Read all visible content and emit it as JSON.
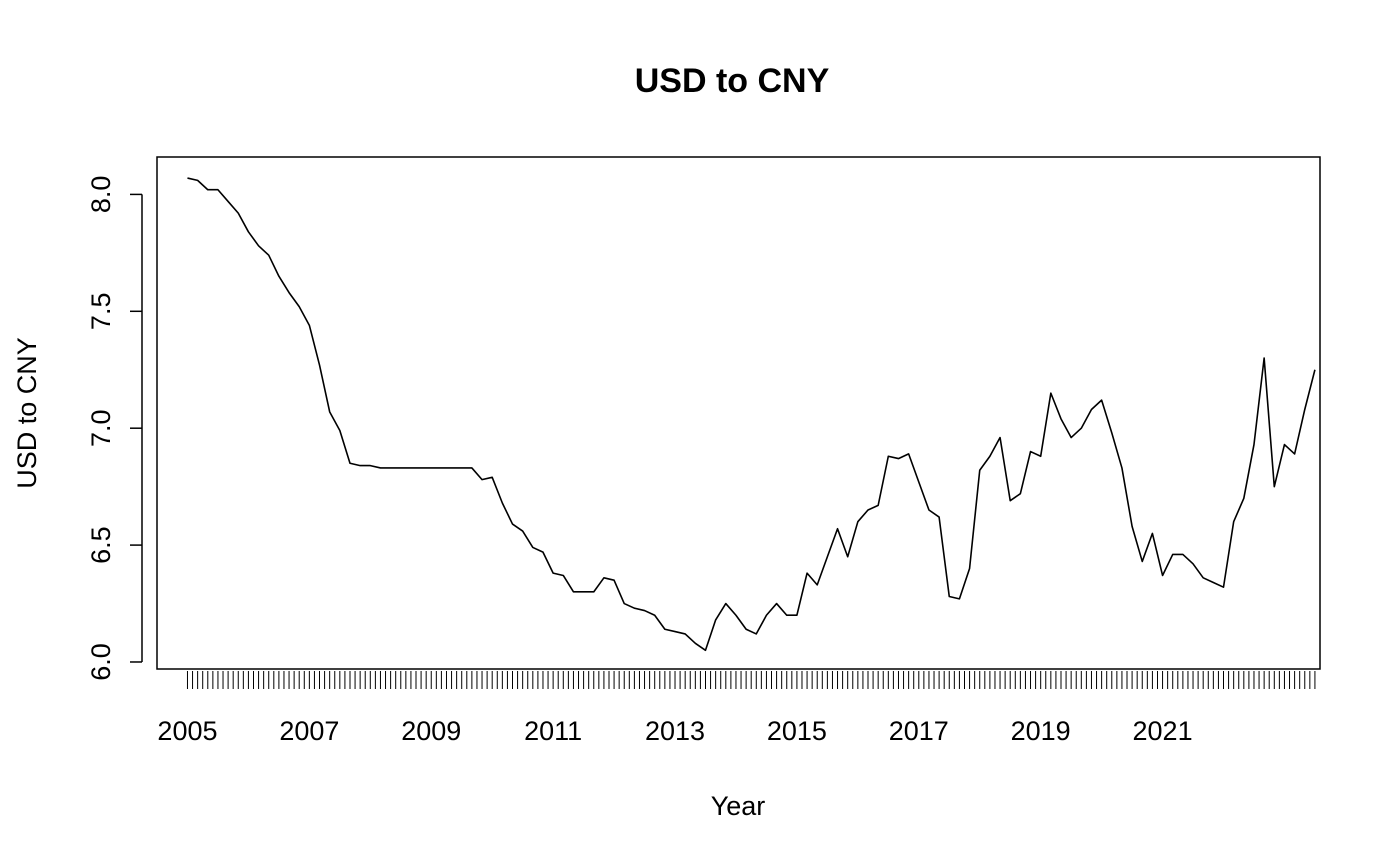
{
  "chart_data": {
    "type": "line",
    "title": "USD to CNY",
    "xlabel": "Year",
    "ylabel": "USD to CNY",
    "x_tick_labels": [
      "2005",
      "2007",
      "2009",
      "2011",
      "2013",
      "2015",
      "2017",
      "2019",
      "2021"
    ],
    "y_tick_labels": [
      "6.0",
      "6.5",
      "7.0",
      "7.5",
      "8.0"
    ],
    "y_ticks": [
      6.0,
      6.5,
      7.0,
      7.5,
      8.0
    ],
    "ylim": [
      5.97,
      8.16
    ],
    "xlim": [
      "2004-07",
      "2023-08"
    ],
    "minor_ticks": "monthly",
    "grid": false,
    "legend": "none",
    "series": [
      {
        "color": "#000000",
        "x": [
          "2005-01",
          "2005-03",
          "2005-05",
          "2005-07",
          "2005-09",
          "2005-11",
          "2006-01",
          "2006-03",
          "2006-05",
          "2006-07",
          "2006-09",
          "2006-11",
          "2007-01",
          "2007-03",
          "2007-05",
          "2007-07",
          "2007-09",
          "2007-11",
          "2008-01",
          "2008-03",
          "2008-05",
          "2008-07",
          "2008-09",
          "2008-11",
          "2009-01",
          "2009-03",
          "2009-05",
          "2009-07",
          "2009-09",
          "2009-11",
          "2010-01",
          "2010-03",
          "2010-05",
          "2010-07",
          "2010-09",
          "2010-11",
          "2011-01",
          "2011-03",
          "2011-05",
          "2011-07",
          "2011-09",
          "2011-11",
          "2012-01",
          "2012-03",
          "2012-05",
          "2012-07",
          "2012-09",
          "2012-11",
          "2013-01",
          "2013-03",
          "2013-05",
          "2013-07",
          "2013-09",
          "2013-11",
          "2014-01",
          "2014-03",
          "2014-05",
          "2014-07",
          "2014-09",
          "2014-11",
          "2015-01",
          "2015-03",
          "2015-05",
          "2015-07",
          "2015-09",
          "2015-11",
          "2016-01",
          "2016-03",
          "2016-05",
          "2016-07",
          "2016-09",
          "2016-11",
          "2017-01",
          "2017-03",
          "2017-05",
          "2017-07",
          "2017-09",
          "2017-11",
          "2018-01",
          "2018-03",
          "2018-05",
          "2018-07",
          "2018-09",
          "2018-11",
          "2019-01",
          "2019-03",
          "2019-05",
          "2019-07",
          "2019-09",
          "2019-11",
          "2020-01",
          "2020-03",
          "2020-05",
          "2020-07",
          "2020-09",
          "2020-11",
          "2021-01",
          "2021-03",
          "2021-05",
          "2021-07",
          "2021-09",
          "2021-11",
          "2022-01",
          "2022-03",
          "2022-05",
          "2022-07",
          "2022-09",
          "2022-11",
          "2023-01",
          "2023-03",
          "2023-05",
          "2023-07"
        ],
        "y": [
          8.07,
          8.06,
          8.02,
          8.02,
          7.97,
          7.92,
          7.84,
          7.78,
          7.74,
          7.65,
          7.58,
          7.52,
          7.44,
          7.27,
          7.07,
          6.99,
          6.85,
          6.84,
          6.84,
          6.83,
          6.83,
          6.83,
          6.83,
          6.83,
          6.83,
          6.83,
          6.83,
          6.83,
          6.83,
          6.78,
          6.79,
          6.68,
          6.59,
          6.56,
          6.49,
          6.47,
          6.38,
          6.37,
          6.3,
          6.3,
          6.3,
          6.36,
          6.35,
          6.25,
          6.23,
          6.22,
          6.2,
          6.14,
          6.13,
          6.12,
          6.08,
          6.05,
          6.18,
          6.25,
          6.2,
          6.14,
          6.12,
          6.2,
          6.25,
          6.2,
          6.2,
          6.38,
          6.33,
          6.45,
          6.57,
          6.45,
          6.6,
          6.65,
          6.67,
          6.88,
          6.87,
          6.89,
          6.77,
          6.65,
          6.62,
          6.28,
          6.27,
          6.4,
          6.82,
          6.88,
          6.96,
          6.69,
          6.72,
          6.9,
          6.88,
          7.15,
          7.04,
          6.96,
          7.0,
          7.08,
          7.12,
          6.98,
          6.83,
          6.58,
          6.43,
          6.55,
          6.37,
          6.46,
          6.46,
          6.42,
          6.36,
          6.34,
          6.32,
          6.6,
          6.7,
          6.93,
          7.3,
          6.75,
          6.93,
          6.89,
          7.08,
          7.25
        ]
      }
    ]
  }
}
